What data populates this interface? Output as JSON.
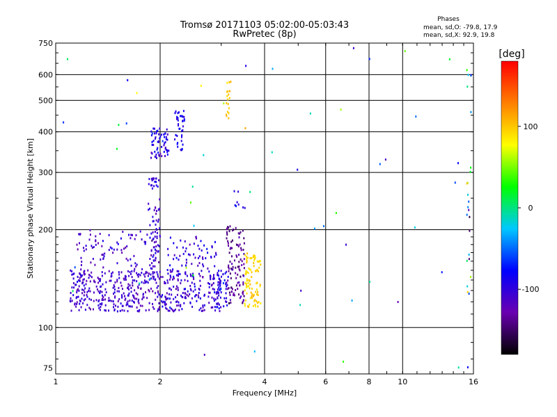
{
  "chart_data": {
    "type": "scatter",
    "title": "Tromsø 20171103 05:02:00-05:03:43",
    "subtitle": "RwPretec (8p)",
    "xlabel": "Frequency [MHz]",
    "ylabel": "Stationary phase Virtual Height [km]",
    "x_scale": "log",
    "y_scale": "log",
    "xlim": [
      1,
      16
    ],
    "ylim": [
      72,
      750
    ],
    "x_ticks": [
      1,
      2,
      4,
      6,
      8,
      10,
      16
    ],
    "y_ticks": [
      75,
      100,
      200,
      300,
      400,
      500,
      600,
      750
    ],
    "grid_x": [
      2,
      4,
      6,
      8,
      10
    ],
    "grid_y": [
      100,
      200,
      300,
      400,
      500,
      600
    ],
    "phases_box": {
      "title": "Phases",
      "line1": "mean, sd,O: -79.8, 17.9",
      "line2": "mean, sd,X:  92.9, 19.8"
    },
    "colorbar": {
      "label": "[deg]",
      "min": -180,
      "max": 180,
      "ticks": [
        100,
        0,
        -100
      ],
      "colors": [
        "#000000",
        "#6a00b0",
        "#0000ff",
        "#00c8ff",
        "#00ff00",
        "#ffff00",
        "#ff7f00",
        "#ff0000"
      ]
    },
    "clusters": [
      {
        "fmin": 1.1,
        "fmax": 2.0,
        "hmin": 112,
        "hmax": 150,
        "phase_mean": -110,
        "phase_sd": 15,
        "count": 320
      },
      {
        "fmin": 1.15,
        "fmax": 2.0,
        "hmin": 150,
        "hmax": 200,
        "phase_mean": -110,
        "phase_sd": 18,
        "count": 90
      },
      {
        "fmin": 1.85,
        "fmax": 2.0,
        "hmin": 140,
        "hmax": 290,
        "phase_mean": -105,
        "phase_sd": 15,
        "count": 80
      },
      {
        "fmin": 1.88,
        "fmax": 2.12,
        "hmin": 330,
        "hmax": 410,
        "phase_mean": -95,
        "phase_sd": 18,
        "count": 60
      },
      {
        "fmin": 2.2,
        "fmax": 2.35,
        "hmin": 350,
        "hmax": 470,
        "phase_mean": -90,
        "phase_sd": 18,
        "count": 40
      },
      {
        "fmin": 2.0,
        "fmax": 3.0,
        "hmin": 112,
        "hmax": 150,
        "phase_mean": -105,
        "phase_sd": 18,
        "count": 200
      },
      {
        "fmin": 2.0,
        "fmax": 2.9,
        "hmin": 150,
        "hmax": 190,
        "phase_mean": -100,
        "phase_sd": 18,
        "count": 60
      },
      {
        "fmin": 2.9,
        "fmax": 3.15,
        "hmin": 115,
        "hmax": 150,
        "phase_mean": -85,
        "phase_sd": 25,
        "count": 40
      },
      {
        "fmin": 3.1,
        "fmax": 3.5,
        "hmin": 118,
        "hmax": 205,
        "phase_mean": -135,
        "phase_sd": 15,
        "count": 110
      },
      {
        "fmin": 3.5,
        "fmax": 3.9,
        "hmin": 115,
        "hmax": 170,
        "phase_mean": 95,
        "phase_sd": 10,
        "count": 90
      },
      {
        "fmin": 3.1,
        "fmax": 3.2,
        "hmin": 440,
        "hmax": 580,
        "phase_mean": 100,
        "phase_sd": 8,
        "count": 18
      },
      {
        "fmin": 3.2,
        "fmax": 3.6,
        "hmin": 225,
        "hmax": 270,
        "phase_mean": -100,
        "phase_sd": 20,
        "count": 8
      },
      {
        "fmin": 1.0,
        "fmax": 16.0,
        "hmin": 75,
        "hmax": 740,
        "phase_mean": -40,
        "phase_sd": 90,
        "count": 55
      },
      {
        "fmin": 15.3,
        "fmax": 15.8,
        "hmin": 120,
        "hmax": 620,
        "phase_mean": -20,
        "phase_sd": 90,
        "count": 22
      }
    ]
  }
}
